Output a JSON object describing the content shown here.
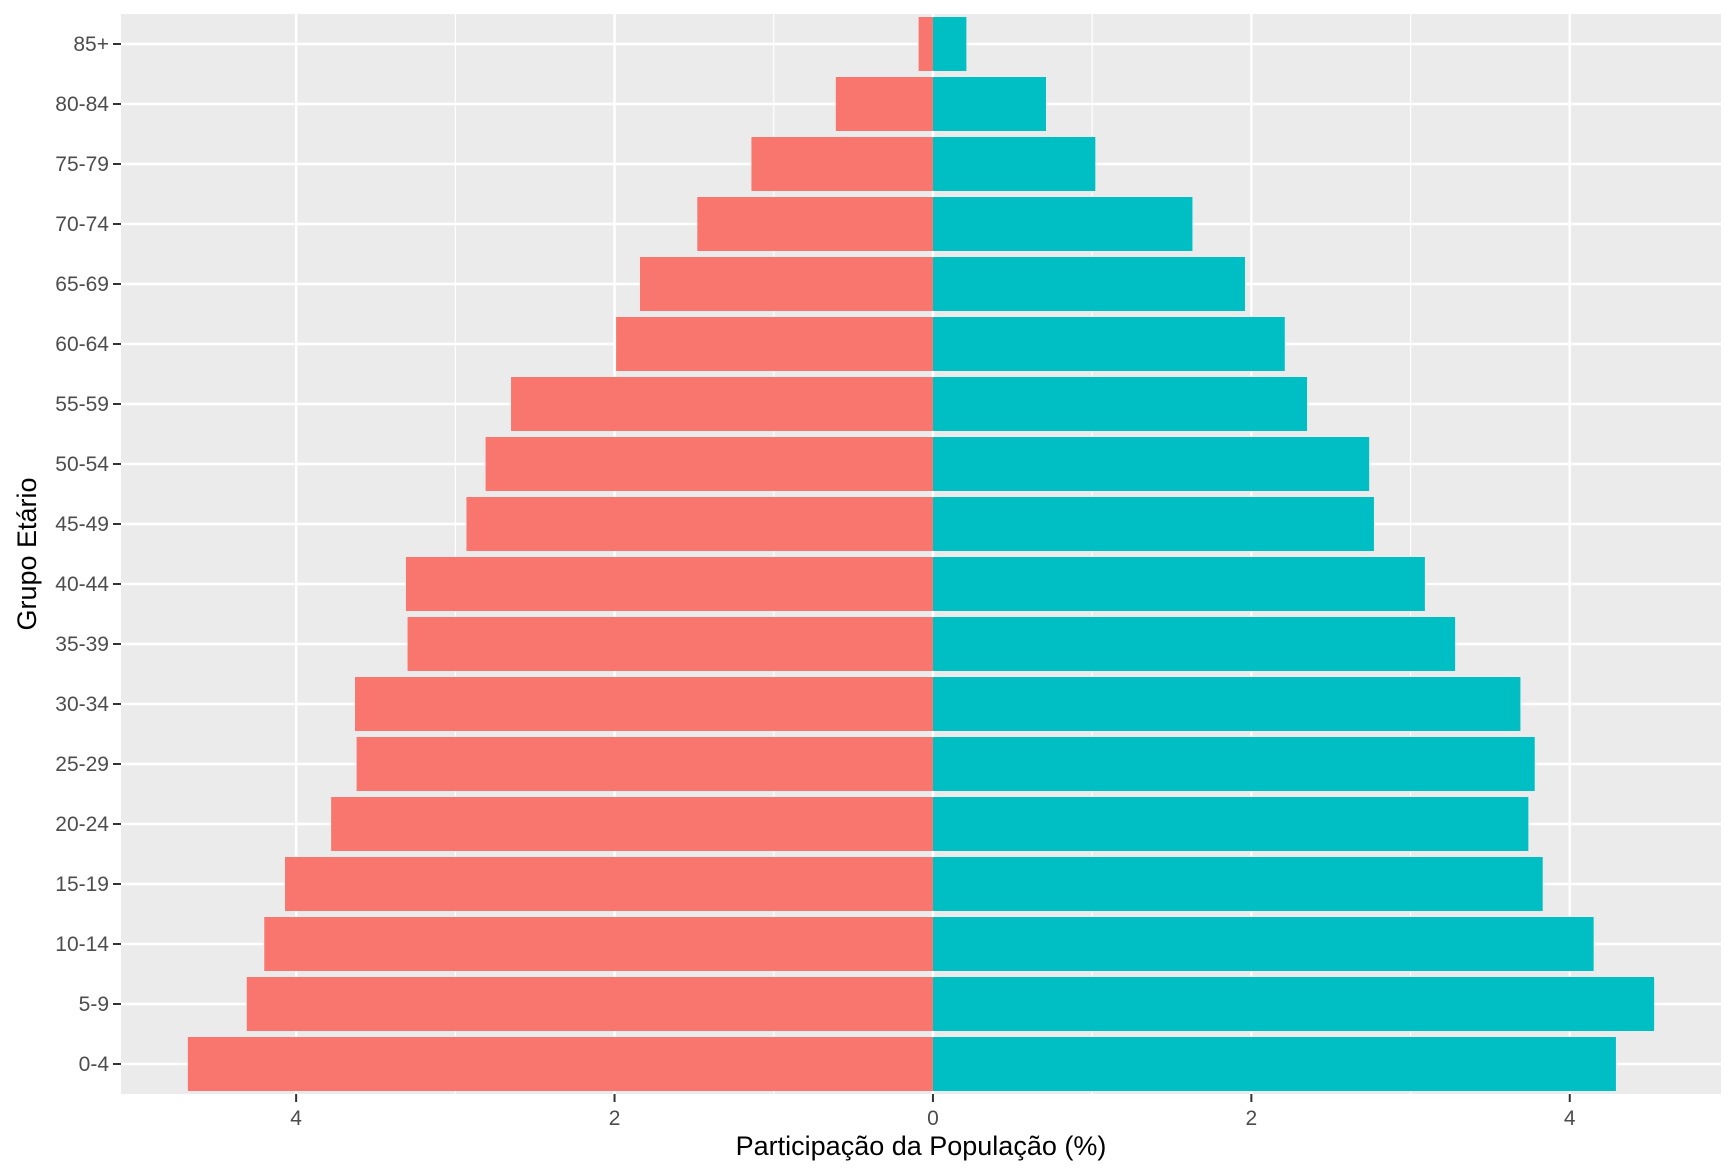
{
  "chart_data": {
    "type": "bar",
    "orientation": "horizontal",
    "subtype": "population-pyramid",
    "xlabel": "Participação da População (%)",
    "ylabel": "Grupo Etário",
    "xlim": [
      -5.1,
      4.95
    ],
    "x_ticks": [
      -4,
      -2,
      0,
      2,
      4
    ],
    "x_tick_labels": [
      "4",
      "2",
      "0",
      "2",
      "4"
    ],
    "categories": [
      "0-4",
      "5-9",
      "10-14",
      "15-19",
      "20-24",
      "25-29",
      "30-34",
      "35-39",
      "40-44",
      "45-49",
      "50-54",
      "55-59",
      "60-64",
      "65-69",
      "70-74",
      "75-79",
      "80-84",
      "85+"
    ],
    "series": [
      {
        "color": "#F8766D",
        "values": [
          -4.68,
          -4.31,
          -4.2,
          -4.07,
          -3.78,
          -3.62,
          -3.63,
          -3.3,
          -3.31,
          -2.93,
          -2.81,
          -2.65,
          -1.99,
          -1.84,
          -1.48,
          -1.14,
          -0.61,
          -0.09
        ]
      },
      {
        "color": "#00BFC4",
        "values": [
          4.29,
          4.53,
          4.15,
          3.83,
          3.74,
          3.78,
          3.69,
          3.28,
          3.09,
          2.77,
          2.74,
          2.35,
          2.21,
          1.96,
          1.63,
          1.02,
          0.71,
          0.21
        ]
      }
    ],
    "grid": true,
    "legend": "none",
    "panel_background": "#EBEBEB",
    "grid_color": "#FFFFFF"
  }
}
